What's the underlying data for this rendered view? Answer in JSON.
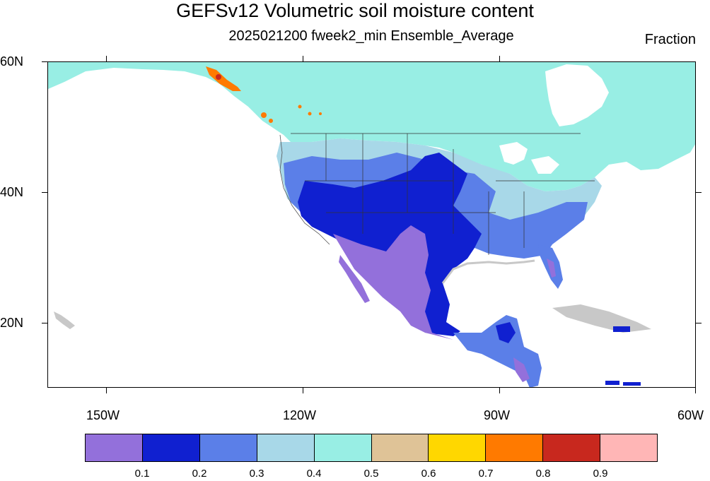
{
  "title": "GEFSv12 Volumetric soil moisture content",
  "subtitle": "2025021200 fweek2_min Ensemble_Average",
  "units": "Fraction",
  "lat_labels": [
    "60N",
    "40N",
    "20N"
  ],
  "lon_labels": [
    "150W",
    "120W",
    "90W",
    "60W"
  ],
  "colorbar": {
    "colors": [
      "#9370DB",
      "#1020D0",
      "#5B7FE8",
      "#A8D8E8",
      "#98EEE4",
      "#DFC397",
      "#FFD700",
      "#FF7A00",
      "#C8281E",
      "#FFB6B6"
    ],
    "labels": [
      "0.1",
      "0.2",
      "0.3",
      "0.4",
      "0.5",
      "0.6",
      "0.7",
      "0.8",
      "0.9"
    ]
  },
  "map": {
    "region": "North America",
    "lat_range": [
      10,
      60
    ],
    "lon_range": [
      -160,
      -60
    ],
    "missing_color": "#C8C8C8"
  }
}
